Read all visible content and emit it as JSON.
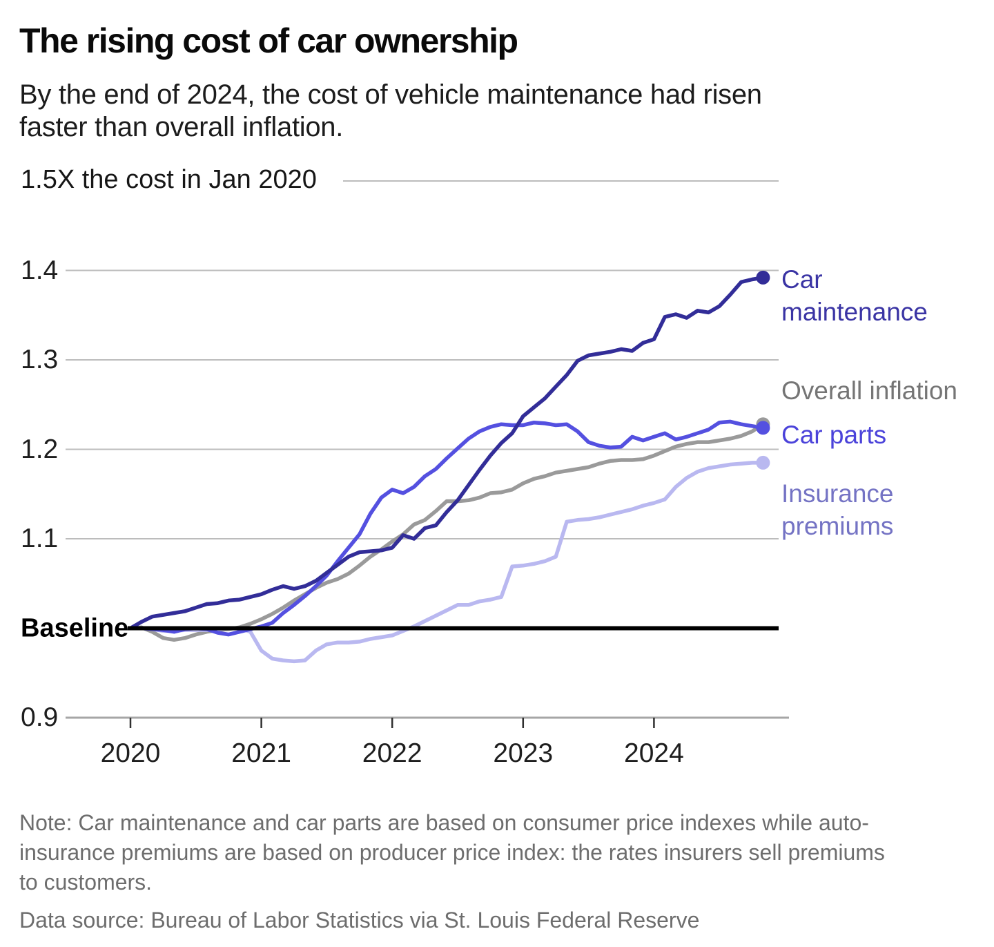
{
  "header": {
    "title": "The rising cost of car ownership",
    "subtitle_lines": [
      "By the end of 2024, the cost of vehicle maintenance had risen",
      "faster than overall inflation."
    ]
  },
  "chart_data": {
    "type": "line",
    "title": "The rising cost of car ownership",
    "x_axis": {
      "tick_labels": [
        "2020",
        "2021",
        "2022",
        "2023",
        "2024"
      ],
      "start_month": "Jan 2020",
      "end_month": "Nov 2024",
      "points_per_series": 59
    },
    "y_axis": {
      "top_label": "1.5X the cost in Jan 2020",
      "top_value": 1.5,
      "range": [
        0.9,
        1.5
      ],
      "ticks": [
        {
          "label": "1.4",
          "value": 1.4,
          "grid": true
        },
        {
          "label": "1.3",
          "value": 1.3,
          "grid": true
        },
        {
          "label": "1.2",
          "value": 1.2,
          "grid": true
        },
        {
          "label": "1.1",
          "value": 1.1,
          "grid": true
        },
        {
          "label": "0.9",
          "value": 0.9,
          "grid": false
        }
      ],
      "baseline": {
        "label": "Baseline",
        "value": 1.0
      }
    },
    "colors": {
      "grid": "#bcbcbc",
      "axis_line": "#a6a6a6",
      "axis_tick": "#2f2f2f",
      "baseline": "#000000"
    },
    "legend_position": "right-of-line-ends",
    "series": [
      {
        "name": "Car maintenance",
        "label_lines": [
          "Car",
          "maintenance"
        ],
        "color": "#322d98",
        "label_color": "#3a34a4",
        "end_value": 1.392,
        "values": [
          1.0,
          1.007,
          1.013,
          1.015,
          1.017,
          1.019,
          1.023,
          1.027,
          1.028,
          1.031,
          1.032,
          1.035,
          1.038,
          1.043,
          1.047,
          1.044,
          1.047,
          1.053,
          1.062,
          1.071,
          1.08,
          1.085,
          1.086,
          1.087,
          1.09,
          1.104,
          1.1,
          1.112,
          1.115,
          1.13,
          1.143,
          1.16,
          1.177,
          1.193,
          1.207,
          1.218,
          1.237,
          1.247,
          1.257,
          1.27,
          1.283,
          1.299,
          1.305,
          1.307,
          1.309,
          1.312,
          1.31,
          1.319,
          1.323,
          1.348,
          1.351,
          1.347,
          1.355,
          1.353,
          1.36,
          1.373,
          1.387,
          1.39,
          1.392
        ]
      },
      {
        "name": "Overall inflation",
        "label_lines": [
          "Overall inflation"
        ],
        "color": "#9a9a9a",
        "label_color": "#757575",
        "end_value": 1.228,
        "values": [
          1.0,
          1.001,
          0.996,
          0.989,
          0.987,
          0.989,
          0.993,
          0.996,
          0.998,
          0.999,
          1.001,
          1.005,
          1.01,
          1.016,
          1.023,
          1.031,
          1.038,
          1.045,
          1.051,
          1.055,
          1.061,
          1.07,
          1.08,
          1.088,
          1.097,
          1.105,
          1.116,
          1.121,
          1.131,
          1.142,
          1.142,
          1.143,
          1.146,
          1.151,
          1.152,
          1.155,
          1.162,
          1.167,
          1.17,
          1.174,
          1.176,
          1.178,
          1.18,
          1.184,
          1.187,
          1.188,
          1.188,
          1.189,
          1.193,
          1.198,
          1.203,
          1.206,
          1.208,
          1.208,
          1.21,
          1.212,
          1.215,
          1.22,
          1.228
        ]
      },
      {
        "name": "Car parts",
        "label_lines": [
          "Car parts"
        ],
        "color": "#5450e0",
        "label_color": "#4b43da",
        "end_value": 1.224,
        "values": [
          1.0,
          1.0,
          0.999,
          0.998,
          0.996,
          0.999,
          1.0,
          0.999,
          0.995,
          0.993,
          0.996,
          0.999,
          1.002,
          1.006,
          1.017,
          1.026,
          1.036,
          1.047,
          1.059,
          1.075,
          1.09,
          1.105,
          1.128,
          1.146,
          1.155,
          1.151,
          1.158,
          1.17,
          1.178,
          1.19,
          1.201,
          1.212,
          1.22,
          1.225,
          1.228,
          1.227,
          1.227,
          1.23,
          1.229,
          1.227,
          1.228,
          1.22,
          1.208,
          1.204,
          1.202,
          1.203,
          1.214,
          1.21,
          1.214,
          1.218,
          1.211,
          1.214,
          1.218,
          1.222,
          1.23,
          1.231,
          1.228,
          1.226,
          1.224
        ]
      },
      {
        "name": "Insurance premiums",
        "label_lines": [
          "Insurance",
          "premiums"
        ],
        "color": "#b9b8f0",
        "label_color": "#7473c4",
        "end_value": 1.185,
        "values": [
          1.0,
          1.0,
          0.999,
          0.997,
          0.997,
          0.998,
          0.998,
          0.998,
          0.999,
          1.0,
          1.0,
          0.996,
          0.975,
          0.966,
          0.964,
          0.963,
          0.964,
          0.975,
          0.982,
          0.984,
          0.984,
          0.985,
          0.988,
          0.99,
          0.992,
          0.997,
          1.002,
          1.008,
          1.014,
          1.02,
          1.026,
          1.026,
          1.03,
          1.032,
          1.035,
          1.069,
          1.07,
          1.072,
          1.075,
          1.08,
          1.119,
          1.121,
          1.122,
          1.124,
          1.127,
          1.13,
          1.133,
          1.137,
          1.14,
          1.144,
          1.158,
          1.168,
          1.175,
          1.179,
          1.181,
          1.183,
          1.184,
          1.185,
          1.185
        ]
      }
    ]
  },
  "footer": {
    "note_lines": [
      "Note: Car maintenance and car parts are based on consumer price indexes while auto-",
      "insurance premiums are based on producer price index: the rates insurers sell premiums",
      "to customers."
    ],
    "source": "Data source: Bureau of Labor Statistics via St. Louis Federal Reserve"
  }
}
